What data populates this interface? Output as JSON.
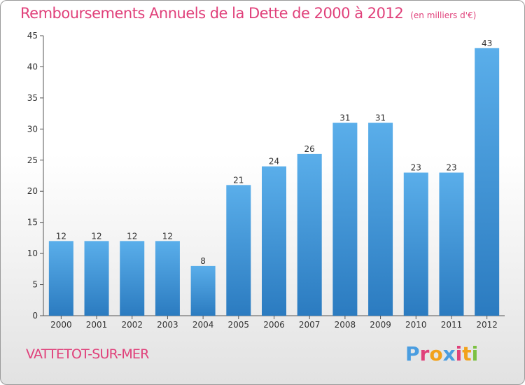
{
  "header": {
    "title": "Remboursements Annuels de la Dette de 2000 à 2012",
    "subtitle": "(en milliers d'€)"
  },
  "footer": {
    "city": "VATTETOT-SUR-MER",
    "logo": "Proxiti",
    "logo_colors": [
      "#4a9de0",
      "#e0407a",
      "#f2a21c",
      "#4a9de0",
      "#e0407a",
      "#f2a21c",
      "#7cc142"
    ]
  },
  "colors": {
    "bar_top": "#5aaeea",
    "bar_bottom": "#2b7bc0",
    "title": "#e0407a"
  },
  "chart_data": {
    "type": "bar",
    "title": "Remboursements Annuels de la Dette de 2000 à 2012",
    "xlabel": "",
    "ylabel": "",
    "categories": [
      "2000",
      "2001",
      "2002",
      "2003",
      "2004",
      "2005",
      "2006",
      "2007",
      "2008",
      "2009",
      "2010",
      "2011",
      "2012"
    ],
    "values": [
      12,
      12,
      12,
      12,
      8,
      21,
      24,
      26,
      31,
      31,
      23,
      23,
      43
    ],
    "ylim": [
      0,
      45
    ],
    "yticks": [
      0,
      5,
      10,
      15,
      20,
      25,
      30,
      35,
      40,
      45
    ],
    "grid": false,
    "legend": "none"
  }
}
